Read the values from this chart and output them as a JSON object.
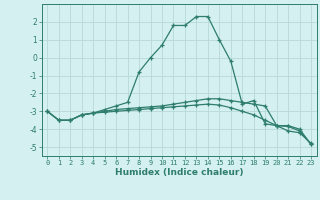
{
  "xlabel": "Humidex (Indice chaleur)",
  "x": [
    0,
    1,
    2,
    3,
    4,
    5,
    6,
    7,
    8,
    9,
    10,
    11,
    12,
    13,
    14,
    15,
    16,
    17,
    18,
    19,
    20,
    21,
    22,
    23
  ],
  "line1": [
    -3.0,
    -3.5,
    -3.5,
    -3.2,
    -3.1,
    -2.9,
    -2.7,
    -2.5,
    -0.8,
    0.0,
    0.7,
    1.8,
    1.8,
    2.3,
    2.3,
    1.0,
    -0.2,
    -2.6,
    -2.4,
    -3.7,
    -3.8,
    -4.1,
    -4.2,
    -4.8
  ],
  "line2": [
    -3.0,
    -3.5,
    -3.5,
    -3.2,
    -3.1,
    -3.0,
    -2.9,
    -2.85,
    -2.8,
    -2.75,
    -2.7,
    -2.6,
    -2.5,
    -2.4,
    -2.3,
    -2.3,
    -2.4,
    -2.5,
    -2.6,
    -2.7,
    -3.8,
    -3.8,
    -4.0,
    -4.85
  ],
  "line3": [
    -3.0,
    -3.5,
    -3.5,
    -3.2,
    -3.1,
    -3.05,
    -3.0,
    -2.95,
    -2.9,
    -2.85,
    -2.8,
    -2.75,
    -2.7,
    -2.65,
    -2.6,
    -2.65,
    -2.8,
    -3.0,
    -3.2,
    -3.5,
    -3.8,
    -3.85,
    -4.1,
    -4.85
  ],
  "ylim": [
    -5.5,
    3.0
  ],
  "xlim": [
    -0.5,
    23.5
  ],
  "yticks": [
    -5,
    -4,
    -3,
    -2,
    -1,
    0,
    1,
    2
  ],
  "xticks": [
    0,
    1,
    2,
    3,
    4,
    5,
    6,
    7,
    8,
    9,
    10,
    11,
    12,
    13,
    14,
    15,
    16,
    17,
    18,
    19,
    20,
    21,
    22,
    23
  ],
  "line_color": "#2e7d6e",
  "bg_color": "#d4f0f0",
  "grid_color": "#b8d8d8",
  "marker": "+",
  "tick_fontsize": 5.0,
  "xlabel_fontsize": 6.5
}
